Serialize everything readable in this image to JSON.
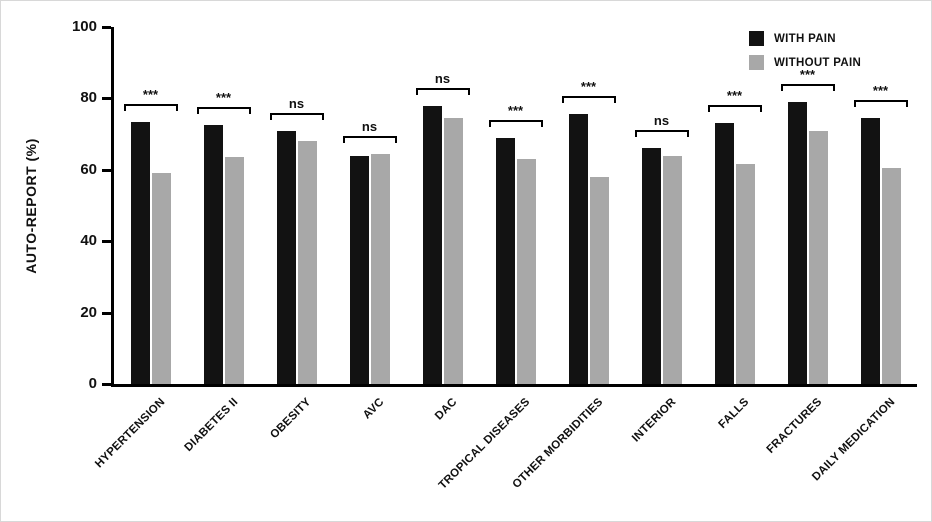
{
  "chart_data": {
    "type": "bar",
    "title": "",
    "xlabel": "",
    "ylabel": "AUTO-REPORT (%)",
    "ylim": [
      0,
      100
    ],
    "yticks": [
      0,
      20,
      40,
      60,
      80,
      100
    ],
    "grid": false,
    "legend_position": "top-right",
    "categories": [
      "HYPERTENSION",
      "DIABETES II",
      "OBESITY",
      "AVC",
      "DAC",
      "TROPICAL DISEASES",
      "OTHER MORBIDITIES",
      "INTERIOR",
      "FALLS",
      "FRACTURES",
      "DAILY MEDICATION"
    ],
    "series": [
      {
        "name": "WITH PAIN",
        "color": "#121212",
        "values": [
          73.5,
          72.5,
          71,
          64,
          78,
          69,
          75.5,
          66,
          73,
          79,
          74.5
        ]
      },
      {
        "name": "WITHOUT PAIN",
        "color": "#a8a8a8",
        "values": [
          59,
          63.5,
          68,
          64.5,
          74.5,
          63,
          58,
          64,
          61.5,
          71,
          60.5
        ]
      }
    ],
    "significance": [
      "***",
      "***",
      "ns",
      "ns",
      "ns",
      "***",
      "***",
      "ns",
      "***",
      "***",
      "***"
    ]
  }
}
